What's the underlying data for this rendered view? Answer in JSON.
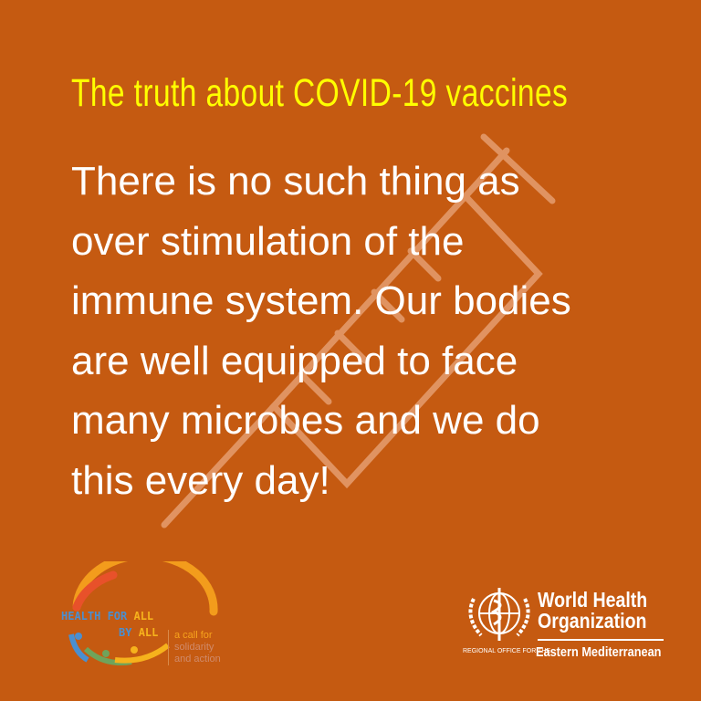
{
  "title": "The truth about COVID-19 vaccines",
  "body_lines": [
    "There is no such thing as",
    "over stimulation of the",
    "immune system. Our bodies",
    "are well equipped to face",
    "many microbes and we do",
    "this every day!"
  ],
  "colors": {
    "background": "#c55a11",
    "title": "#ffff00",
    "body": "#ffffff"
  },
  "watermark_icon": "syringe-icon",
  "hfa_logo": {
    "line1_a": "HEALTH FOR ",
    "line1_b": "ALL",
    "line2_a": "BY ",
    "line2_b": "ALL",
    "tagline": [
      "a call for",
      "solidarity",
      "and action"
    ]
  },
  "who_logo": {
    "name_line1": "World Health",
    "name_line2": "Organization",
    "region_prefix": "REGIONAL OFFICE FOR THE",
    "region": "Eastern Mediterranean"
  }
}
